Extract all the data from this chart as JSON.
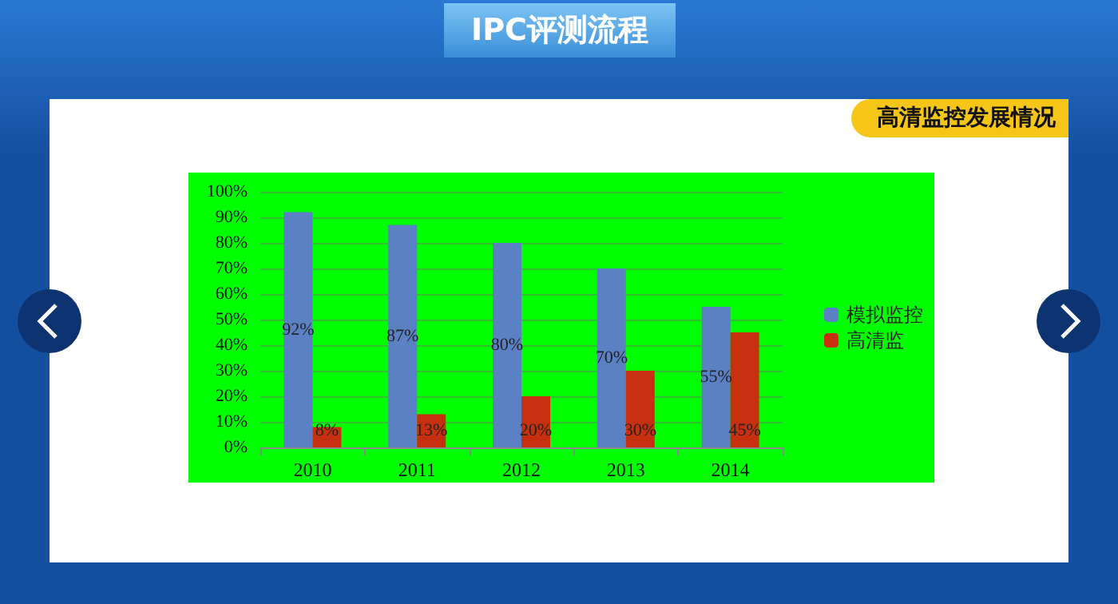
{
  "chart_data": {
    "type": "bar",
    "title": "IPC评测流程",
    "subtitle": "高清监控发展情况",
    "categories": [
      "2010",
      "2011",
      "2012",
      "2013",
      "2014"
    ],
    "series": [
      {
        "name": "模拟监控",
        "color": "#5b80c4",
        "values": [
          92,
          87,
          80,
          70,
          55
        ]
      },
      {
        "name": "高清监",
        "color": "#c6300e",
        "values": [
          8,
          13,
          20,
          30,
          45
        ]
      }
    ],
    "ylim": [
      0,
      100
    ],
    "yticks": [
      {
        "value": 0,
        "label": "0%"
      },
      {
        "value": 10,
        "label": "10%"
      },
      {
        "value": 20,
        "label": "20%"
      },
      {
        "value": 30,
        "label": "30%"
      },
      {
        "value": 40,
        "label": "40%"
      },
      {
        "value": 50,
        "label": "50%"
      },
      {
        "value": 60,
        "label": "60%"
      },
      {
        "value": 70,
        "label": "70%"
      },
      {
        "value": 80,
        "label": "80%"
      },
      {
        "value": 90,
        "label": "90%"
      },
      {
        "value": 100,
        "label": "100%"
      }
    ],
    "value_labels": [
      [
        "92%",
        "87%",
        "80%",
        "70%",
        "55%"
      ],
      [
        "8%",
        "13%",
        "20%",
        "30%",
        "45%"
      ]
    ],
    "grid": "y",
    "legend": "right"
  }
}
